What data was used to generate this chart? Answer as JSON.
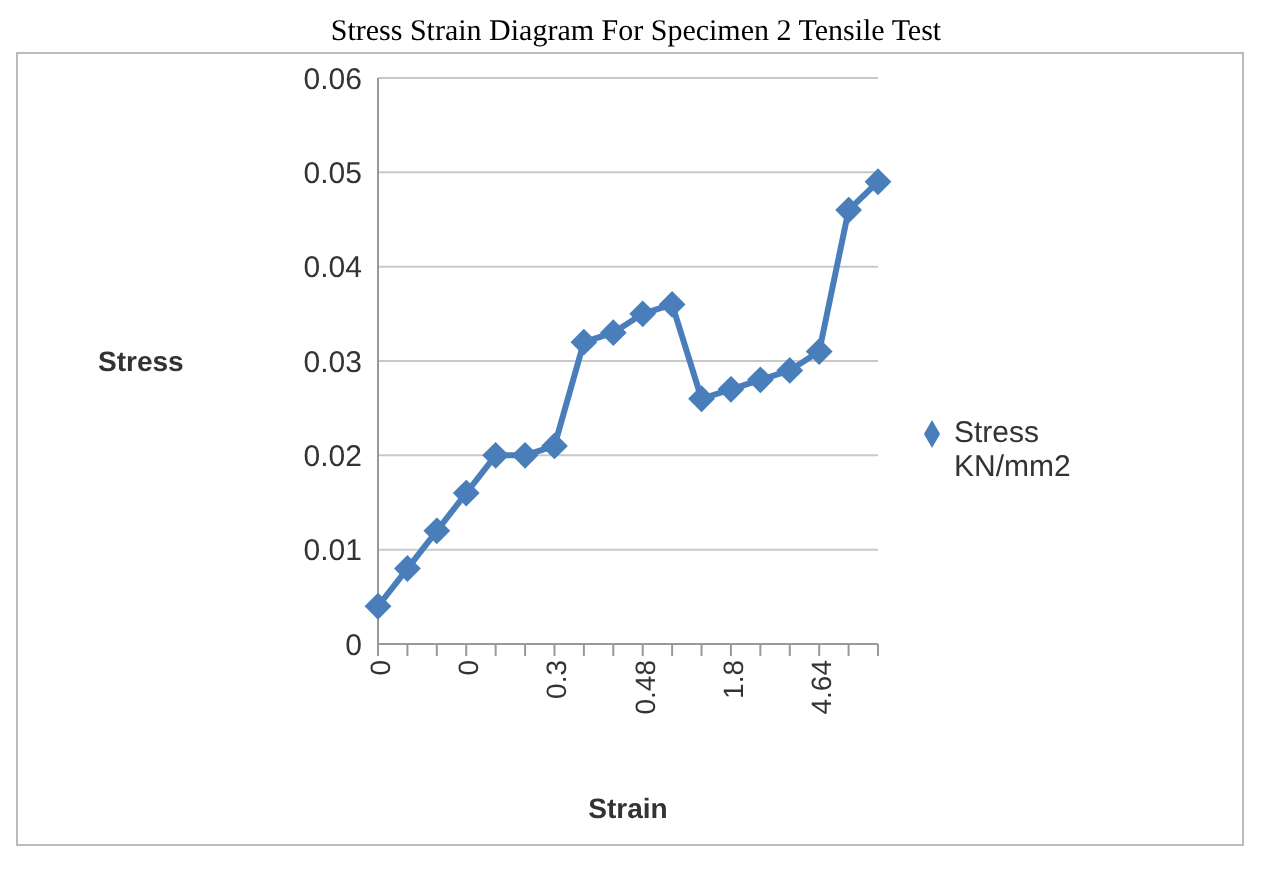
{
  "chart_data": {
    "type": "line",
    "title": "Stress Strain Diagram For Specimen 2 Tensile Test",
    "xlabel": "Strain",
    "ylabel": "Stress",
    "categories": [
      "0",
      null,
      null,
      "0",
      null,
      null,
      "0.3",
      null,
      null,
      "0.48",
      null,
      null,
      "1.8",
      null,
      null,
      "4.64",
      null,
      null
    ],
    "series": [
      {
        "name": "Stress KN/mm2",
        "color": "#4a7ebb",
        "values": [
          0.004,
          0.008,
          0.012,
          0.016,
          0.02,
          0.02,
          0.021,
          0.032,
          0.033,
          0.035,
          0.036,
          0.026,
          0.027,
          0.028,
          0.029,
          0.031,
          0.046,
          0.049
        ]
      }
    ],
    "ylim": [
      0,
      0.06
    ],
    "yticks": [
      0,
      0.01,
      0.02,
      0.03,
      0.04,
      0.05,
      0.06
    ],
    "grid": "y",
    "legend": "right",
    "marker": "diamond",
    "line_style": "solid"
  }
}
